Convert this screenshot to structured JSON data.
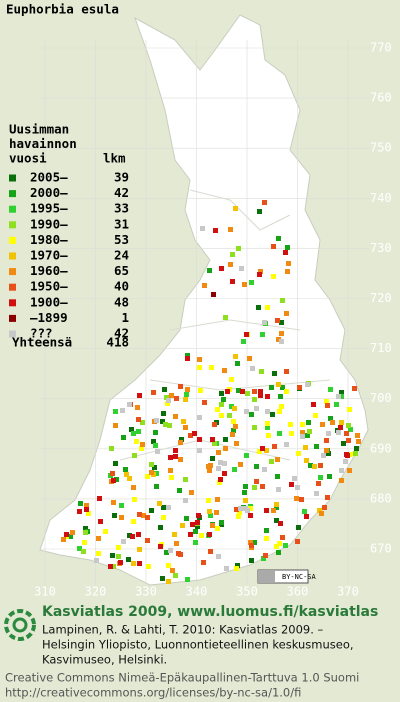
{
  "title": "Euphorbia esula",
  "legend": {
    "heading": [
      "Uusimman",
      "havainnon",
      "vuosi"
    ],
    "count_header": "lkm",
    "rows": [
      {
        "label": "2005–",
        "count": 39,
        "color": "#0a6e0a"
      },
      {
        "label": "2000–",
        "count": 42,
        "color": "#17a317"
      },
      {
        "label": "1995–",
        "count": 33,
        "color": "#2fd02f"
      },
      {
        "label": "1990–",
        "count": 31,
        "color": "#8ee01e"
      },
      {
        "label": "1980–",
        "count": 53,
        "color": "#ffff00"
      },
      {
        "label": "1970–",
        "count": 24,
        "color": "#f2c200"
      },
      {
        "label": "1960–",
        "count": 65,
        "color": "#f08a10"
      },
      {
        "label": "1950–",
        "count": 40,
        "color": "#e8501a"
      },
      {
        "label": "1900–",
        "count": 48,
        "color": "#d01010"
      },
      {
        "label": "–1899",
        "count": 1,
        "color": "#8a0000"
      },
      {
        "label": "???",
        "count": 42,
        "color": "#c8c8c8"
      }
    ],
    "total_label": "Yhteensä",
    "total": 418
  },
  "grid": {
    "y_labels": [
      670,
      680,
      690,
      700,
      710,
      720,
      730,
      740,
      750,
      760,
      770
    ],
    "x_labels": [
      310,
      320,
      330,
      340,
      350,
      360,
      370
    ]
  },
  "badge": "BY-NC-SA",
  "footer": {
    "heading": "Kasviatlas 2009, www.luomus.fi/kasviatlas",
    "citation": [
      "Lampinen, R. & Lahti, T. 2010: Kasviatlas 2009. –",
      "Helsingin Yliopisto, Luonnontieteellinen keskusmuseo,",
      "Kasvimuseo, Helsinki."
    ],
    "license": [
      "Creative Commons Nimeä-Epäkaupallinen-Tarttuva 1.0 Suomi",
      "http://creativecommons.org/licenses/by-nc-sa/1.0/fi"
    ]
  }
}
